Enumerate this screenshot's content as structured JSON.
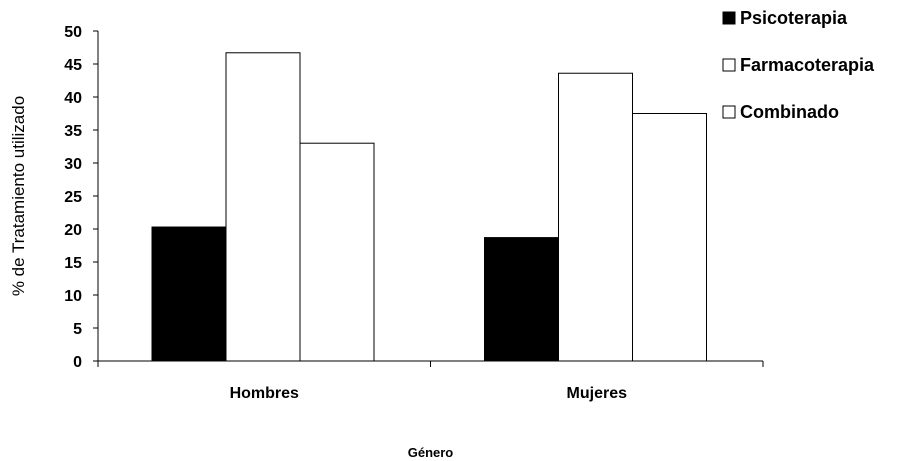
{
  "chart_data": {
    "type": "bar",
    "title": "",
    "xlabel": "Género",
    "ylabel": "% de Tratamiento utilizado",
    "categories": [
      "Hombres",
      "Mujeres"
    ],
    "series": [
      {
        "name": "Psicoterapia",
        "values": [
          20.3,
          18.7
        ],
        "color": "#000000"
      },
      {
        "name": "Farmacoterapia",
        "values": [
          46.7,
          43.6
        ],
        "color": "#ffffff"
      },
      {
        "name": "Combinado",
        "values": [
          33.0,
          37.5
        ],
        "color": "#ffffff"
      }
    ],
    "ylim": [
      0,
      50
    ],
    "yticks": [
      "0",
      "5",
      "10",
      "15",
      "20",
      "25",
      "30",
      "35",
      "40",
      "45",
      "50"
    ],
    "grid": false,
    "legend_position": "top-right",
    "bar_stroke": "#000000"
  }
}
